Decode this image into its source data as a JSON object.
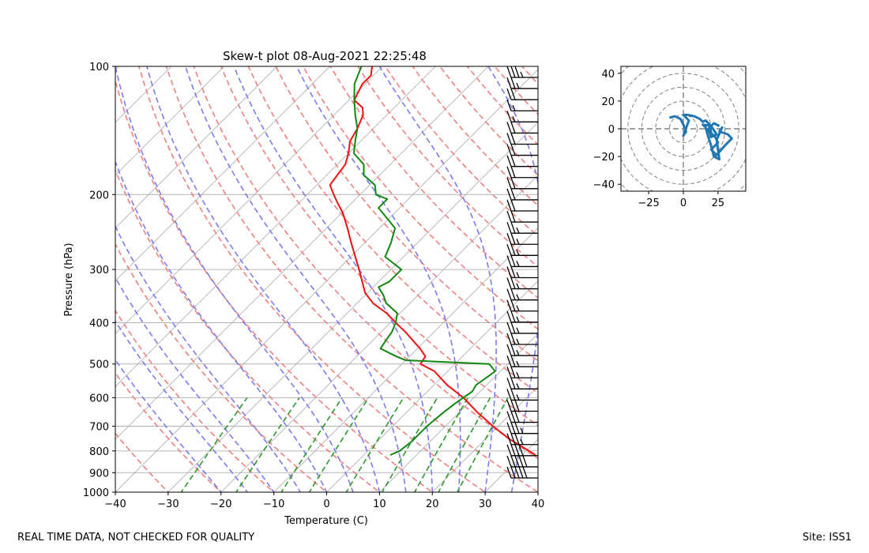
{
  "footer": {
    "left": "REAL TIME DATA, NOT CHECKED FOR QUALITY",
    "right": "Site: ISS1"
  },
  "colors": {
    "temperature": "#ee1111",
    "dewpoint": "#118811",
    "dry_adiabat": "#f08080",
    "moist_adiabat": "#7b7bf0",
    "mixing_ratio": "#2a9a2a",
    "isotherm": "#b0b0b0",
    "hodograph": "#1f77b4"
  },
  "chart_data": [
    {
      "type": "skew-t",
      "title": "Skew-t plot 08-Aug-2021 22:25:48",
      "xlabel": "Temperature (C)",
      "ylabel": "Pressure (hPa)",
      "xlim": [
        -40,
        40
      ],
      "ylim": [
        1000,
        100
      ],
      "y_scale": "log",
      "x_ticks": [
        -40,
        -30,
        -20,
        -10,
        0,
        10,
        20,
        30,
        40
      ],
      "y_ticks": [
        100,
        200,
        300,
        400,
        500,
        600,
        700,
        800,
        900,
        1000
      ],
      "grid": true,
      "series": [
        {
          "role": "temperature",
          "p": [
            818,
            800,
            750,
            700,
            650,
            600,
            560,
            520,
            500,
            480,
            460,
            420,
            400,
            380,
            360,
            340,
            300,
            260,
            240,
            220,
            210,
            200,
            190,
            180,
            170,
            160,
            150,
            140,
            130,
            125,
            120,
            110,
            105,
            100
          ],
          "t": [
            32.5,
            30.5,
            24.5,
            19.0,
            13.5,
            8.0,
            2.5,
            -2.5,
            -6.5,
            -7.0,
            -9.5,
            -15.5,
            -19.0,
            -22.5,
            -27.0,
            -30.5,
            -36.0,
            -42.5,
            -46.0,
            -50.0,
            -52.5,
            -55.0,
            -57.5,
            -58.0,
            -58.5,
            -60.0,
            -62.0,
            -63.0,
            -64.5,
            -66.0,
            -69.0,
            -70.5,
            -70.5,
            -72.0
          ]
        },
        {
          "role": "dewpoint",
          "p": [
            818,
            800,
            760,
            720,
            700,
            650,
            620,
            580,
            560,
            540,
            520,
            500,
            490,
            480,
            460,
            440,
            420,
            400,
            380,
            360,
            345,
            330,
            320,
            300,
            280,
            260,
            240,
            220,
            215,
            205,
            200,
            190,
            180,
            170,
            160,
            150,
            140,
            130,
            120,
            110,
            100
          ],
          "t": [
            5.0,
            6.0,
            6.5,
            6.5,
            6.5,
            7.0,
            7.5,
            8.5,
            8.0,
            8.5,
            9.0,
            6.5,
            -10.0,
            -12.5,
            -17.0,
            -17.5,
            -18.0,
            -19.0,
            -20.5,
            -24.5,
            -26.5,
            -29.0,
            -28.0,
            -28.0,
            -33.5,
            -35.0,
            -37.0,
            -42.5,
            -44.0,
            -44.0,
            -47.0,
            -49.0,
            -53.0,
            -55.0,
            -59.0,
            -61.0,
            -63.0,
            -66.0,
            -69.0,
            -72.0,
            -74.0
          ]
        }
      ],
      "wind_barbs": {
        "speed_kt": [
          35,
          28,
          20,
          15,
          18,
          20,
          20,
          20,
          20,
          20,
          20,
          20,
          20,
          20,
          25,
          25,
          25,
          25,
          25,
          25,
          25,
          25,
          25,
          25,
          25,
          25,
          25,
          25,
          25,
          25,
          30,
          30,
          35,
          35,
          40,
          50,
          50
        ]
      }
    },
    {
      "type": "hodograph",
      "xlim": [
        -45,
        45
      ],
      "ylim": [
        -45,
        45
      ],
      "x_ticks": [
        -25,
        0,
        25
      ],
      "y_ticks": [
        -40,
        -20,
        0,
        20,
        40
      ],
      "ring_spacing": 10,
      "u": [
        -10,
        -6,
        -2,
        0,
        2,
        0,
        4,
        0,
        3,
        8,
        12,
        14,
        16,
        19,
        20,
        23,
        25,
        20,
        24,
        30,
        35,
        32,
        26,
        28,
        24,
        26,
        22,
        20,
        18,
        16,
        14,
        20,
        24,
        20,
        18,
        22,
        26
      ],
      "v": [
        8,
        9,
        7,
        3,
        -2,
        -5,
        6,
        10,
        10,
        9,
        7,
        5,
        6,
        3,
        -3,
        -6,
        -10,
        -15,
        -19,
        -12,
        -7,
        -4,
        -2,
        1,
        -8,
        -22,
        -20,
        -12,
        -6,
        1,
        3,
        2,
        -4,
        -6,
        0,
        4,
        2
      ]
    }
  ]
}
